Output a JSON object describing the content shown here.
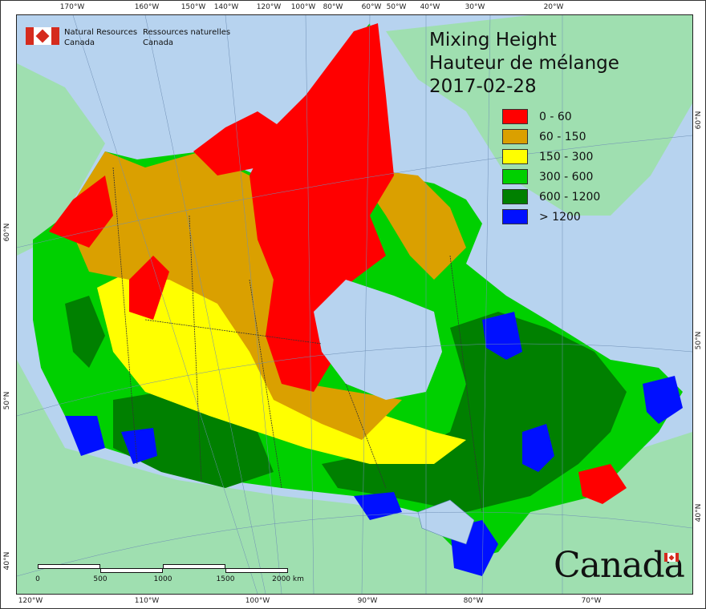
{
  "org": {
    "en_line1": "Natural Resources",
    "en_line2": "Canada",
    "fr_line1": "Ressources naturelles",
    "fr_line2": "Canada"
  },
  "title": {
    "line1": "Mixing Height",
    "line2": "Hauteur de mélange",
    "date": "2017-02-28"
  },
  "legend": [
    {
      "label": "0 - 60",
      "color": "#ff0000"
    },
    {
      "label": "60 - 150",
      "color": "#daa000"
    },
    {
      "label": "150 - 300",
      "color": "#ffff00"
    },
    {
      "label": "300 - 600",
      "color": "#00d000"
    },
    {
      "label": "600 - 1200",
      "color": "#008000"
    },
    {
      "label": "> 1200",
      "color": "#0010ff"
    }
  ],
  "graticule": {
    "top": [
      "170°W",
      "160°W",
      "150°W",
      "140°W",
      "120°W",
      "100°W",
      "80°W",
      "60°W",
      "50°W",
      "40°W",
      "30°W",
      "20°W"
    ],
    "bottom": [
      "120°W",
      "110°W",
      "100°W",
      "90°W",
      "80°W",
      "70°W"
    ],
    "left": [
      "60°N",
      "50°N",
      "40°N"
    ],
    "right": [
      "60°N",
      "50°N",
      "40°N"
    ]
  },
  "scale": {
    "labels": [
      "0",
      "500",
      "1000",
      "1500",
      "2000 km"
    ]
  },
  "wordmark": "Canada",
  "colors": {
    "water": "#b7d3ef",
    "land_outside": "#9fdfb0"
  }
}
